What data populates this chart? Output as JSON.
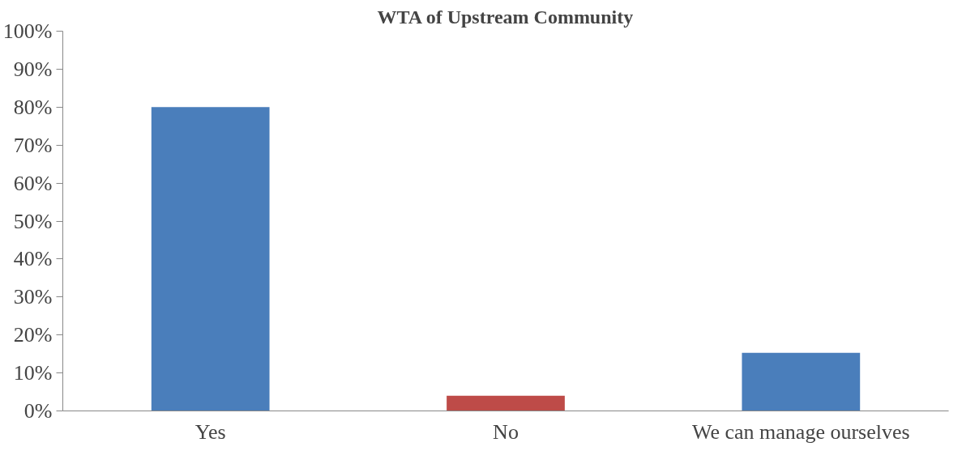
{
  "chart_data": {
    "type": "bar",
    "title": "WTA of Upstream Community",
    "categories": [
      "Yes",
      "No",
      "We can manage ourselves"
    ],
    "values": [
      80,
      4,
      15.3
    ],
    "colors": [
      "#4a7ebb",
      "#be4b48",
      "#4a7ebb"
    ],
    "ylim": [
      0,
      100
    ],
    "yticks": [
      {
        "value": 0,
        "label": "0%"
      },
      {
        "value": 10,
        "label": "10%"
      },
      {
        "value": 20,
        "label": "20%"
      },
      {
        "value": 30,
        "label": "30%"
      },
      {
        "value": 40,
        "label": "40%"
      },
      {
        "value": 50,
        "label": "50%"
      },
      {
        "value": 60,
        "label": "60%"
      },
      {
        "value": 70,
        "label": "70%"
      },
      {
        "value": 80,
        "label": "80%"
      },
      {
        "value": 90,
        "label": "90%"
      },
      {
        "value": 100,
        "label": "100%"
      }
    ],
    "grid": false
  }
}
